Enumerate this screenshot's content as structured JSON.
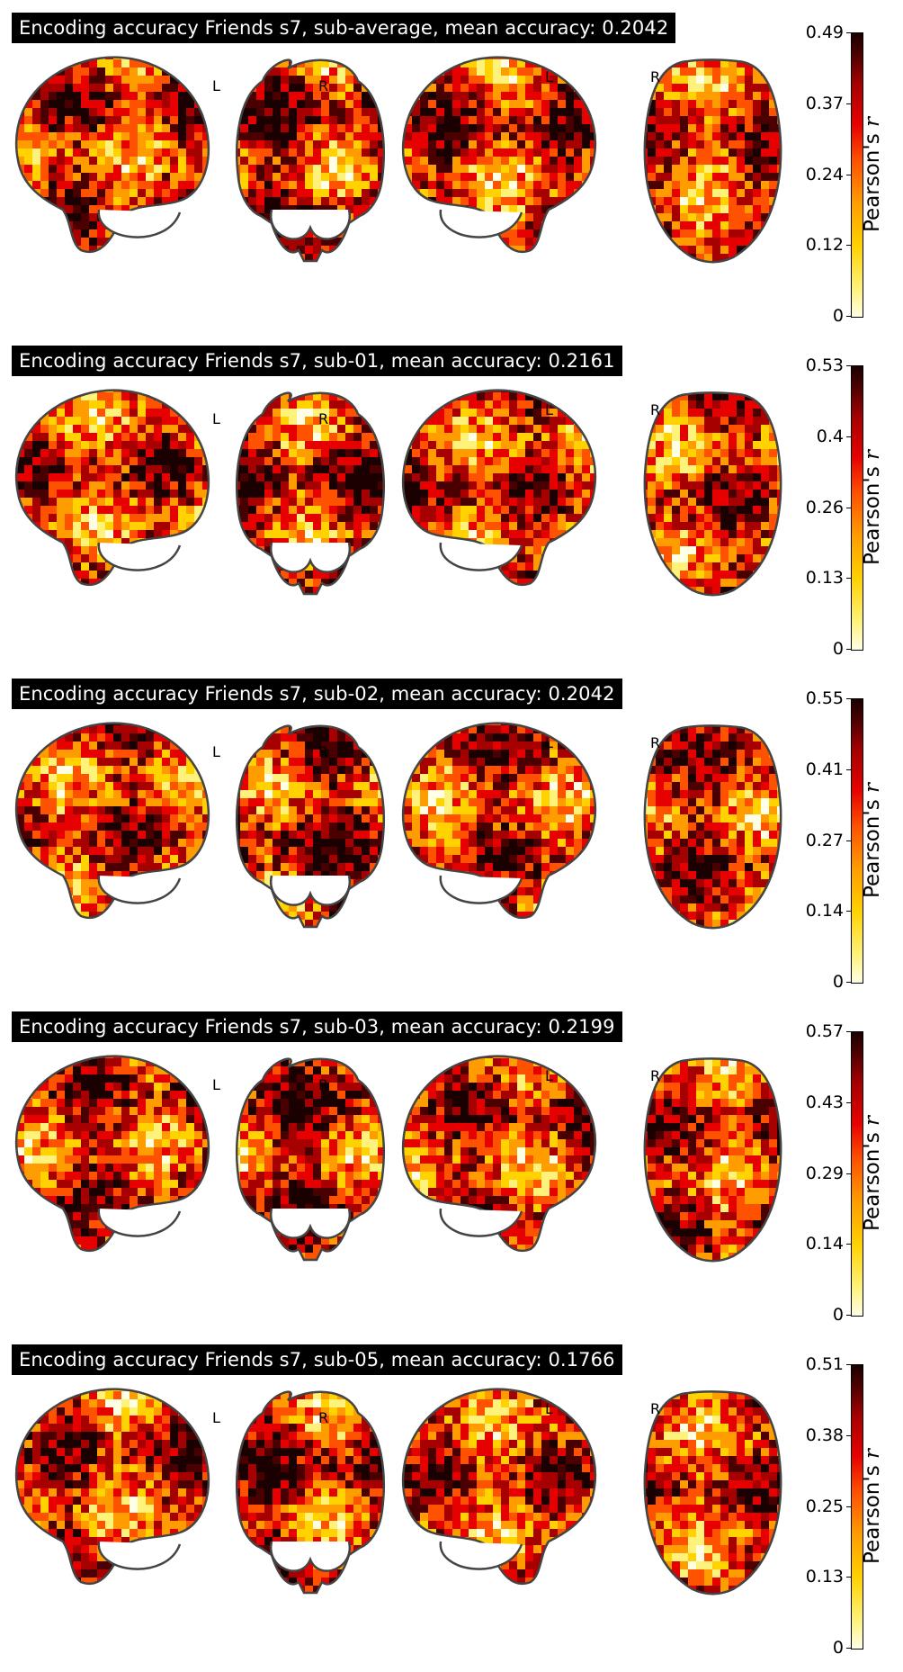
{
  "figure": {
    "colorbar_label_text": "Pearson's ",
    "colorbar_label_symbol": "r",
    "side_labels": {
      "left": "L",
      "right": "R"
    },
    "colormap": [
      "#ffffe6",
      "#fff27a",
      "#ffd200",
      "#ff9d00",
      "#ff5200",
      "#e60000",
      "#a60000",
      "#4a0000",
      "#1a0000"
    ]
  },
  "panels": [
    {
      "title": "Encoding accuracy Friends s7, sub-average, mean accuracy: 0.2042",
      "ticks": [
        "0",
        "0.12",
        "0.24",
        "0.37",
        "0.49"
      ],
      "vmax": 0.49
    },
    {
      "title": "Encoding accuracy Friends s7, sub-01, mean accuracy: 0.2161",
      "ticks": [
        "0",
        "0.13",
        "0.26",
        "0.4",
        "0.53"
      ],
      "vmax": 0.53
    },
    {
      "title": "Encoding accuracy Friends s7, sub-02, mean accuracy: 0.2042",
      "ticks": [
        "0",
        "0.14",
        "0.27",
        "0.41",
        "0.55"
      ],
      "vmax": 0.55
    },
    {
      "title": "Encoding accuracy Friends s7, sub-03, mean accuracy: 0.2199",
      "ticks": [
        "0",
        "0.14",
        "0.29",
        "0.43",
        "0.57"
      ],
      "vmax": 0.57
    },
    {
      "title": "Encoding accuracy Friends s7, sub-05, mean accuracy: 0.1766",
      "ticks": [
        "0",
        "0.13",
        "0.25",
        "0.38",
        "0.51"
      ],
      "vmax": 0.51
    }
  ]
}
